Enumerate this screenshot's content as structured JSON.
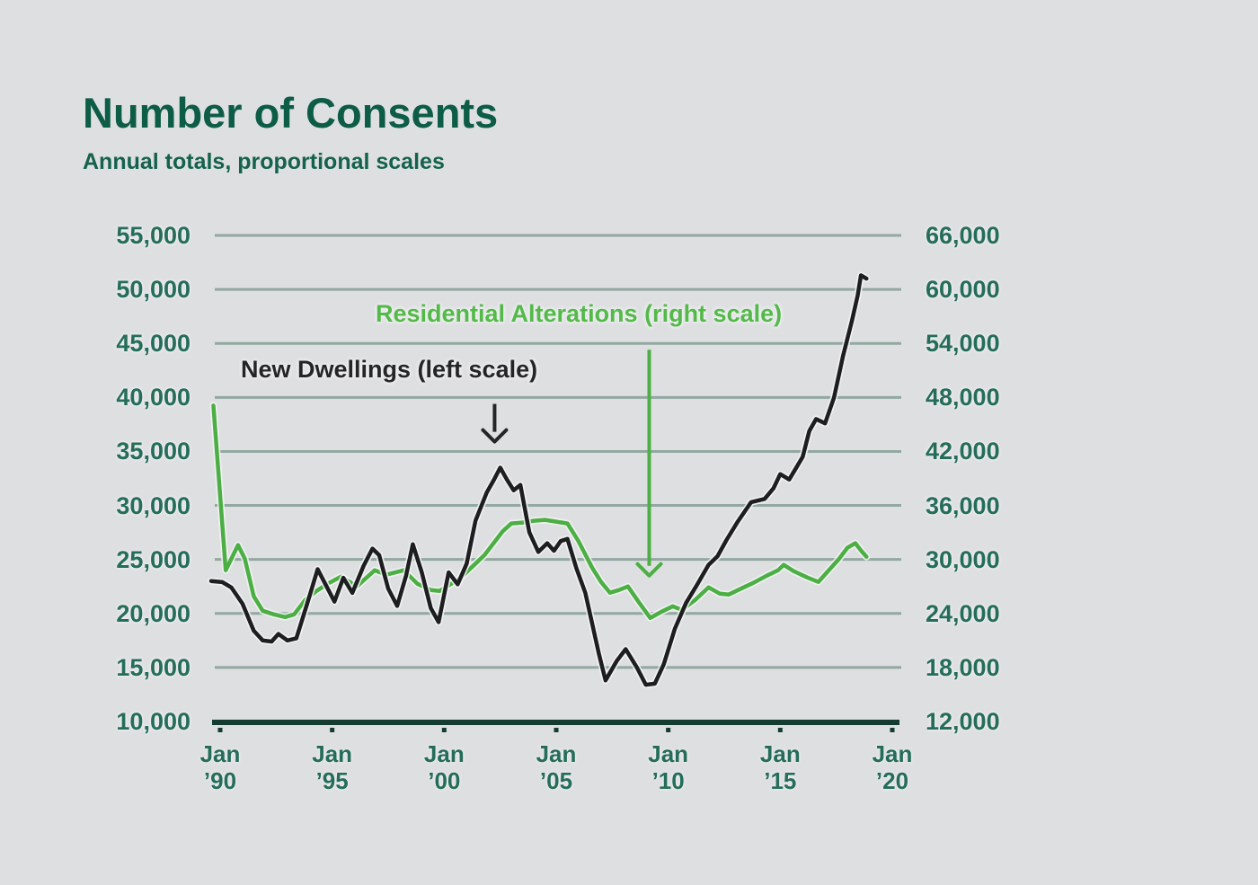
{
  "header": {
    "title": "Number of Consents",
    "subtitle": "Annual totals, proportional scales"
  },
  "chart_data": {
    "type": "line",
    "title": "Number of Consents",
    "subtitle": "Annual totals, proportional scales",
    "grid": true,
    "colors": {
      "background": "#dedfe1",
      "gridline": "#92a8a1",
      "axis": "#143c31",
      "axis_text": "#256d5a",
      "new_dwellings_line": "#1e1e20",
      "residential_alterations_line": "#4caf44",
      "residential_alterations_text": "#55b94a"
    },
    "left_axis": {
      "min": 10000,
      "max": 55000,
      "step": 5000,
      "tick_labels": [
        "55,000",
        "50,000",
        "45,000",
        "40,000",
        "35,000",
        "30,000",
        "25,000",
        "20,000",
        "15,000",
        "10,000"
      ],
      "tick_values": [
        55000,
        50000,
        45000,
        40000,
        35000,
        30000,
        25000,
        20000,
        15000,
        10000
      ]
    },
    "right_axis": {
      "min": 12000,
      "max": 66000,
      "step": 6000,
      "tick_labels": [
        "66,000",
        "60,000",
        "54,000",
        "48,000",
        "42,000",
        "36,000",
        "30,000",
        "24,000",
        "18,000",
        "12,000"
      ],
      "tick_values": [
        66000,
        60000,
        54000,
        48000,
        42000,
        36000,
        30000,
        24000,
        18000,
        12000
      ]
    },
    "x_axis": {
      "range_years": [
        1989.6,
        2020
      ],
      "ticks": [
        {
          "year": 1990,
          "label": "Jan\n’90"
        },
        {
          "year": 1995,
          "label": "Jan\n’95"
        },
        {
          "year": 2000,
          "label": "Jan\n’00"
        },
        {
          "year": 2005,
          "label": "Jan\n’05"
        },
        {
          "year": 2010,
          "label": "Jan\n’10"
        },
        {
          "year": 2015,
          "label": "Jan\n’15"
        },
        {
          "year": 2020,
          "label": "Jan\n’20"
        }
      ]
    },
    "series": [
      {
        "name": "New Dwellings (left scale)",
        "scale": "left",
        "color": "#1e1e20",
        "points": [
          [
            1989.6,
            23000
          ],
          [
            1990.1,
            22900
          ],
          [
            1990.5,
            22400
          ],
          [
            1991.0,
            20900
          ],
          [
            1991.5,
            18400
          ],
          [
            1991.9,
            17500
          ],
          [
            1992.3,
            17400
          ],
          [
            1992.6,
            18100
          ],
          [
            1993.0,
            17500
          ],
          [
            1993.4,
            17700
          ],
          [
            1993.9,
            21000
          ],
          [
            1994.35,
            24100
          ],
          [
            1995.1,
            21100
          ],
          [
            1995.5,
            23300
          ],
          [
            1995.9,
            21900
          ],
          [
            1996.4,
            24400
          ],
          [
            1996.8,
            26000
          ],
          [
            1997.1,
            25400
          ],
          [
            1997.5,
            22300
          ],
          [
            1997.9,
            20700
          ],
          [
            1998.3,
            23500
          ],
          [
            1998.6,
            26400
          ],
          [
            1999.0,
            23800
          ],
          [
            1999.4,
            20500
          ],
          [
            1999.75,
            19200
          ],
          [
            2000.2,
            23800
          ],
          [
            2000.6,
            22700
          ],
          [
            2001.0,
            24600
          ],
          [
            2001.4,
            28600
          ],
          [
            2001.9,
            31200
          ],
          [
            2002.2,
            32300
          ],
          [
            2002.5,
            33500
          ],
          [
            2002.8,
            32400
          ],
          [
            2003.1,
            31400
          ],
          [
            2003.4,
            31900
          ],
          [
            2003.8,
            27500
          ],
          [
            2004.2,
            25700
          ],
          [
            2004.6,
            26500
          ],
          [
            2004.9,
            25800
          ],
          [
            2005.2,
            26700
          ],
          [
            2005.5,
            26900
          ],
          [
            2005.9,
            24200
          ],
          [
            2006.3,
            21900
          ],
          [
            2006.9,
            16300
          ],
          [
            2007.2,
            13800
          ],
          [
            2007.7,
            15600
          ],
          [
            2008.1,
            16700
          ],
          [
            2008.6,
            15000
          ],
          [
            2009.0,
            13400
          ],
          [
            2009.4,
            13500
          ],
          [
            2009.8,
            15300
          ],
          [
            2010.3,
            18600
          ],
          [
            2010.8,
            21000
          ],
          [
            2011.3,
            22700
          ],
          [
            2011.8,
            24500
          ],
          [
            2012.2,
            25300
          ],
          [
            2012.6,
            26800
          ],
          [
            2013.1,
            28500
          ],
          [
            2013.7,
            30300
          ],
          [
            2014.3,
            30600
          ],
          [
            2014.7,
            31600
          ],
          [
            2015.0,
            32900
          ],
          [
            2015.4,
            32400
          ],
          [
            2016.0,
            34500
          ],
          [
            2016.3,
            36900
          ],
          [
            2016.6,
            38000
          ],
          [
            2017.0,
            37600
          ],
          [
            2017.4,
            40000
          ],
          [
            2017.8,
            43800
          ],
          [
            2018.2,
            47100
          ],
          [
            2018.45,
            49400
          ],
          [
            2018.6,
            51300
          ],
          [
            2018.85,
            51000
          ]
        ]
      },
      {
        "name": "Residential Alterations (right scale)",
        "scale": "right",
        "color": "#4caf44",
        "points": [
          [
            1989.7,
            47100
          ],
          [
            1990.25,
            28800
          ],
          [
            1990.8,
            31600
          ],
          [
            1991.1,
            30100
          ],
          [
            1991.5,
            25900
          ],
          [
            1991.9,
            24300
          ],
          [
            1992.4,
            23900
          ],
          [
            1992.9,
            23600
          ],
          [
            1993.3,
            23900
          ],
          [
            1993.8,
            25500
          ],
          [
            1994.3,
            26500
          ],
          [
            1994.8,
            27300
          ],
          [
            1995.4,
            28100
          ],
          [
            1996.1,
            27000
          ],
          [
            1996.9,
            28800
          ],
          [
            1997.4,
            28300
          ],
          [
            1998.2,
            28800
          ],
          [
            1998.8,
            27300
          ],
          [
            1999.4,
            26600
          ],
          [
            1999.8,
            26500
          ],
          [
            2000.7,
            27900
          ],
          [
            2001.3,
            29300
          ],
          [
            2001.8,
            30500
          ],
          [
            2002.6,
            33100
          ],
          [
            2003.0,
            34000
          ],
          [
            2003.5,
            34100
          ],
          [
            2004.0,
            34300
          ],
          [
            2004.5,
            34400
          ],
          [
            2005.0,
            34200
          ],
          [
            2005.5,
            34000
          ],
          [
            2006.0,
            32000
          ],
          [
            2006.6,
            29100
          ],
          [
            2007.0,
            27500
          ],
          [
            2007.4,
            26300
          ],
          [
            2007.8,
            26600
          ],
          [
            2008.2,
            27000
          ],
          [
            2008.7,
            25200
          ],
          [
            2009.2,
            23500
          ],
          [
            2009.7,
            24200
          ],
          [
            2010.2,
            24800
          ],
          [
            2010.6,
            24400
          ],
          [
            2011.2,
            25500
          ],
          [
            2011.8,
            26900
          ],
          [
            2012.3,
            26200
          ],
          [
            2012.7,
            26100
          ],
          [
            2013.2,
            26700
          ],
          [
            2013.8,
            27400
          ],
          [
            2014.4,
            28200
          ],
          [
            2014.9,
            28800
          ],
          [
            2015.15,
            29400
          ],
          [
            2015.6,
            28700
          ],
          [
            2016.2,
            28000
          ],
          [
            2016.7,
            27500
          ],
          [
            2017.2,
            28900
          ],
          [
            2017.6,
            30000
          ],
          [
            2018.0,
            31300
          ],
          [
            2018.35,
            31800
          ],
          [
            2018.6,
            31000
          ],
          [
            2018.85,
            30300
          ]
        ]
      }
    ],
    "annotations": {
      "arrows": [
        {
          "series": "new-dwellings",
          "color": "#252527",
          "x_year": 2002.25,
          "from_left_value": 39400,
          "to_left_value": 35900
        },
        {
          "series": "residential-alterations",
          "color": "#4caf44",
          "x_year": 2009.15,
          "from_right_value": 53300,
          "to_right_value": 28200
        }
      ]
    },
    "legend_position": "inline-annotations"
  }
}
